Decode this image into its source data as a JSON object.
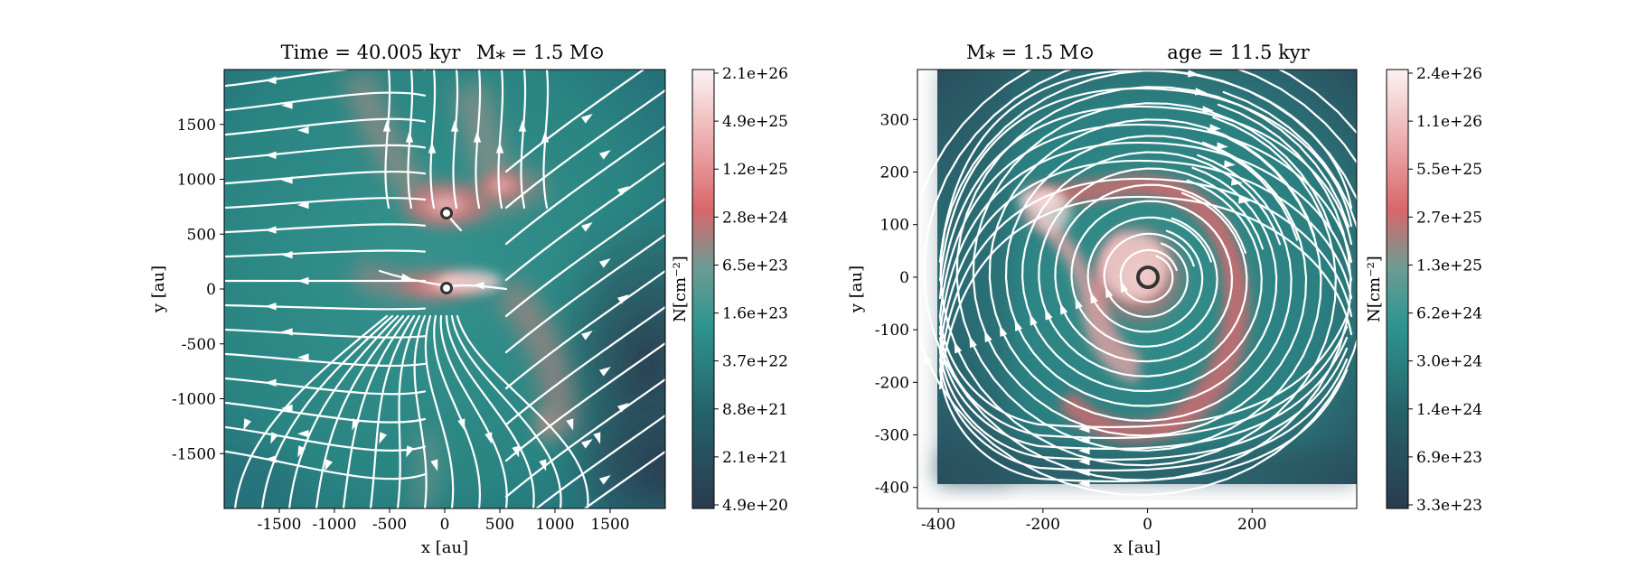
{
  "chart_data": [
    {
      "type": "heatmap",
      "title_left": "Time = 40.005 kyr",
      "title_right": "M⁎ = 1.5 M⊙",
      "xlabel": "x [au]",
      "ylabel": "y [au]",
      "xlim": [
        -2000,
        2000
      ],
      "ylim": [
        -2000,
        2000
      ],
      "x_ticks": [
        -1500,
        -1000,
        -500,
        0,
        500,
        1000,
        1500
      ],
      "y_ticks": [
        -1500,
        -1000,
        -500,
        0,
        500,
        1000,
        1500
      ],
      "colorbar": {
        "label": "N[cm⁻²]",
        "ticks": [
          "2.1e+26",
          "4.9e+25",
          "1.2e+25",
          "2.8e+24",
          "6.5e+23",
          "1.6e+23",
          "3.7e+22",
          "8.8e+21",
          "2.1e+21",
          "4.9e+20"
        ]
      },
      "sinks": [
        {
          "x": 0,
          "y": 680
        },
        {
          "x": 0,
          "y": 0
        }
      ],
      "overlay": "velocity streamlines"
    },
    {
      "type": "heatmap",
      "title_left": "M⁎ = 1.5 M⊙",
      "title_right": "age = 11.5 kyr",
      "xlabel": "x [au]",
      "ylabel": "y [au]",
      "xlim": [
        -440,
        400
      ],
      "ylim": [
        -440,
        395
      ],
      "x_ticks": [
        -400,
        -200,
        0,
        200
      ],
      "y_ticks": [
        300,
        200,
        100,
        0,
        -100,
        -200,
        -300,
        -400
      ],
      "colorbar": {
        "label": "N[cm⁻²]",
        "ticks": [
          "2.4e+26",
          "1.1e+26",
          "5.5e+25",
          "2.7e+25",
          "1.3e+25",
          "6.2e+24",
          "3.0e+24",
          "1.4e+24",
          "6.9e+23",
          "3.3e+23"
        ]
      },
      "sinks": [
        {
          "x": 0,
          "y": 0
        }
      ],
      "overlay": "velocity streamlines"
    }
  ]
}
